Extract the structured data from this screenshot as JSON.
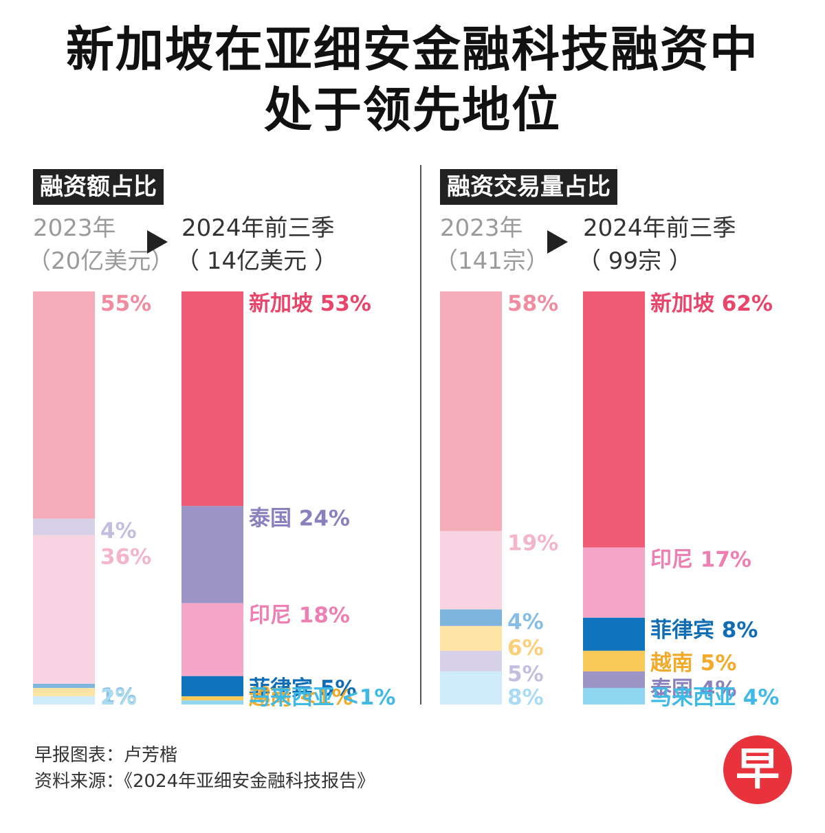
{
  "title_line1": "新加坡在亚细安金融科技融资中",
  "title_line2": "处于领先地位",
  "panels": [
    {
      "tag": "融资额占比",
      "year_a": "2023年",
      "year_a_sub": "（20亿美元）",
      "year_b": "2024年前三季",
      "year_b_sub": "（ 14亿美元 ）"
    },
    {
      "tag": "融资交易量占比",
      "year_a": "2023年",
      "year_a_sub": "（141宗）",
      "year_b": "2024年前三季",
      "year_b_sub": "（ 99宗 ）"
    }
  ],
  "chart_data": [
    {
      "type": "bar",
      "stacked": true,
      "panel": "融资额占比",
      "categories": [
        "2023年",
        "2024年前三季"
      ],
      "series_2023": [
        {
          "value": 55,
          "label": "55%",
          "color": "#f4adb9",
          "text_color": "#f08ca0"
        },
        {
          "value": 4,
          "label": "4%",
          "color": "#d6d0e8",
          "text_color": "#c5bde0"
        },
        {
          "value": 36,
          "label": "36%",
          "color": "#f8d4e3",
          "text_color": "#f3b5cc"
        },
        {
          "value": 1,
          "label": "1%",
          "color": "#7db5df",
          "text_color": "#86bde4"
        },
        {
          "value": 2,
          "label": "2%",
          "color": "#fde3a6",
          "text_color": "#fbcf7a"
        },
        {
          "value": 2,
          "label": "2%",
          "color": "#cfeaf8",
          "text_color": "#a9dcf4"
        }
      ],
      "series_2024": [
        {
          "value": 53,
          "label": "新加坡 53%",
          "color": "#ef5b74",
          "text_color": "#e8456a"
        },
        {
          "value": 24,
          "label": "泰国 24%",
          "color": "#9d94c6",
          "text_color": "#8a80bd"
        },
        {
          "value": 18,
          "label": "印尼 18%",
          "color": "#f4a6c9",
          "text_color": "#ee7fb2"
        },
        {
          "value": 5,
          "label": "菲律宾 5%",
          "color": "#0f74bd",
          "text_color": "#0f6db5"
        },
        {
          "value": 1,
          "label": "越南 <1%",
          "color": "#f8c957",
          "text_color": "#f2aa2a"
        },
        {
          "value": 1,
          "label": "马来西亚 <1%",
          "color": "#8fd7f1",
          "text_color": "#3fb9e6"
        }
      ]
    },
    {
      "type": "bar",
      "stacked": true,
      "panel": "融资交易量占比",
      "categories": [
        "2023年",
        "2024年前三季"
      ],
      "series_2023": [
        {
          "value": 58,
          "label": "58%",
          "color": "#f4adb9",
          "text_color": "#f08ca0"
        },
        {
          "value": 19,
          "label": "19%",
          "color": "#f8d4e3",
          "text_color": "#f3b5cc"
        },
        {
          "value": 4,
          "label": "4%",
          "color": "#7db5df",
          "text_color": "#86bde4"
        },
        {
          "value": 6,
          "label": "6%",
          "color": "#fde3a6",
          "text_color": "#fbcf7a"
        },
        {
          "value": 5,
          "label": "5%",
          "color": "#d6d0e8",
          "text_color": "#c5bde0"
        },
        {
          "value": 8,
          "label": "8%",
          "color": "#cfeaf8",
          "text_color": "#a9dcf4"
        }
      ],
      "series_2024": [
        {
          "value": 62,
          "label": "新加坡 62%",
          "color": "#ef5b74",
          "text_color": "#e8456a"
        },
        {
          "value": 17,
          "label": "印尼 17%",
          "color": "#f4a6c9",
          "text_color": "#ee7fb2"
        },
        {
          "value": 8,
          "label": "菲律宾 8%",
          "color": "#0f74bd",
          "text_color": "#0f6db5"
        },
        {
          "value": 5,
          "label": "越南 5%",
          "color": "#f8c957",
          "text_color": "#f2aa2a"
        },
        {
          "value": 4,
          "label": "泰国 4%",
          "color": "#9d94c6",
          "text_color": "#8a80bd"
        },
        {
          "value": 4,
          "label": "马来西亚 4%",
          "color": "#8fd7f1",
          "text_color": "#3fb9e6"
        }
      ]
    }
  ],
  "footer": {
    "line1": "早报图表：卢芳楷",
    "line2": "资料来源：《2024年亚细安金融科技报告》"
  },
  "logo_char": "早"
}
